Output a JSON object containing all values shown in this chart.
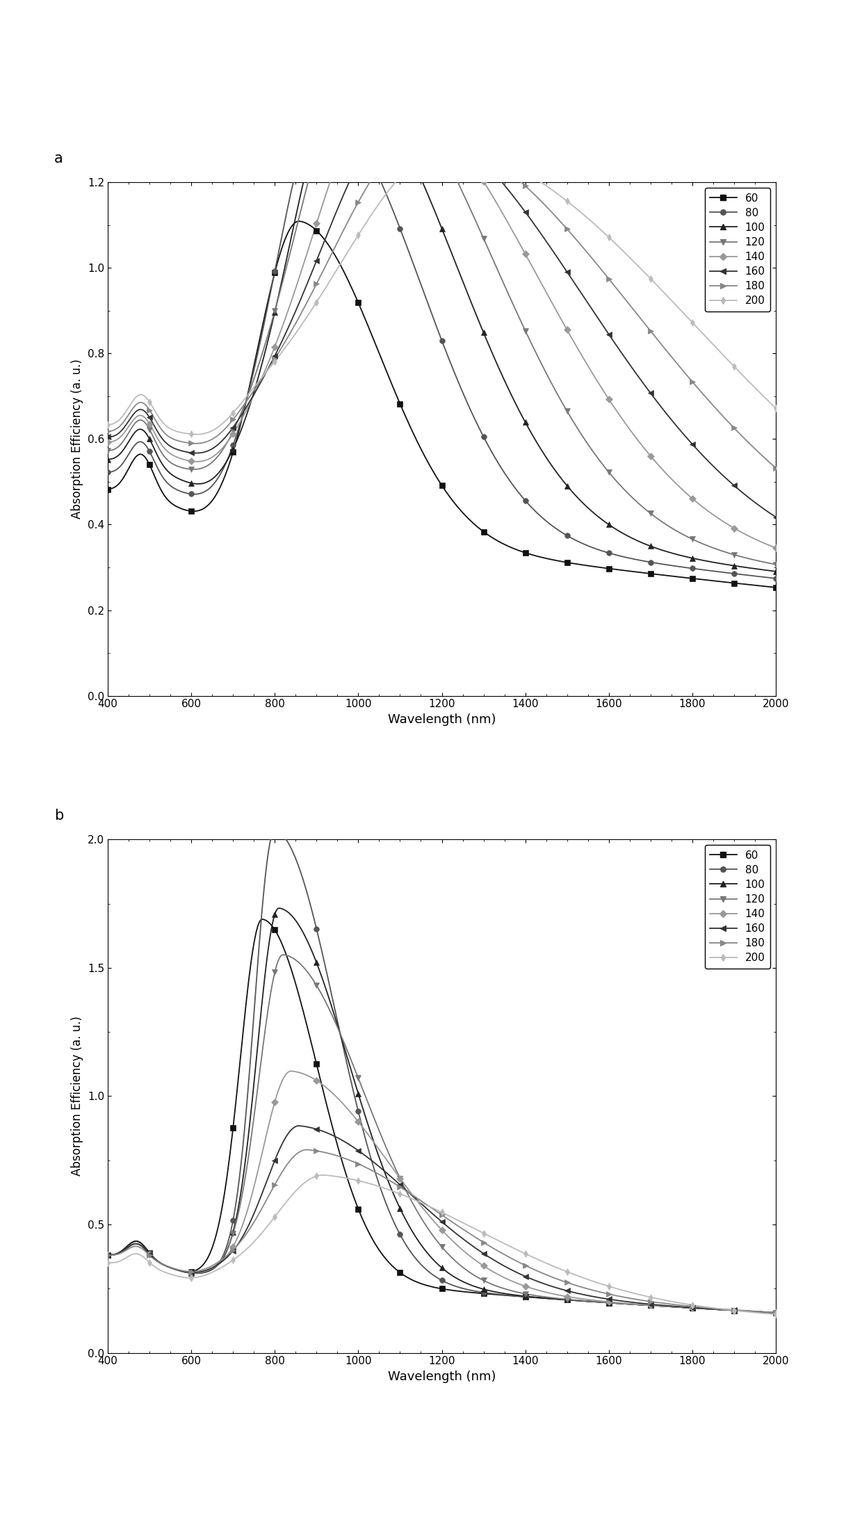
{
  "panel_a": {
    "title": "a",
    "xlabel": "Wavelength (nm)",
    "ylabel": "Absorption Efficiency (a. u.)",
    "xlim": [
      400,
      2000
    ],
    "ylim": [
      0.0,
      1.2
    ],
    "yticks": [
      0.0,
      0.2,
      0.4,
      0.6,
      0.8,
      1.0,
      1.2
    ],
    "xticks": [
      400,
      600,
      800,
      1000,
      1200,
      1400,
      1600,
      1800,
      2000
    ]
  },
  "panel_b": {
    "title": "b",
    "xlabel": "Wavelength (nm)",
    "ylabel": "Absorption Efficiency (a. u.)",
    "xlim": [
      400,
      2000
    ],
    "ylim": [
      0.0,
      2.0
    ],
    "yticks": [
      0,
      0.5,
      1.0,
      1.5,
      2.0
    ],
    "xticks": [
      400,
      600,
      800,
      1000,
      1200,
      1400,
      1600,
      1800,
      2000
    ]
  },
  "legend_labels": [
    "60",
    "80",
    "100",
    "120",
    "140",
    "160",
    "180",
    "200"
  ],
  "series_a": {
    "60": {
      "peak_wl": 860,
      "peak_val": 0.71,
      "sigma_l": 95,
      "sigma_r": 190,
      "base": 0.48,
      "sub_amp": 0.1,
      "sub_wl": 480,
      "sub_sig": 30
    },
    "80": {
      "peak_wl": 920,
      "peak_val": 0.95,
      "sigma_l": 115,
      "sigma_r": 230,
      "base": 0.52,
      "sub_amp": 0.09,
      "sub_wl": 480,
      "sub_sig": 30
    },
    "100": {
      "peak_wl": 970,
      "peak_val": 1.01,
      "sigma_l": 130,
      "sigma_r": 265,
      "base": 0.55,
      "sub_amp": 0.09,
      "sub_wl": 480,
      "sub_sig": 30
    },
    "120": {
      "peak_wl": 1010,
      "peak_val": 1.04,
      "sigma_l": 155,
      "sigma_r": 310,
      "base": 0.57,
      "sub_amp": 0.09,
      "sub_wl": 480,
      "sub_sig": 30
    },
    "140": {
      "peak_wl": 1070,
      "peak_val": 0.97,
      "sigma_l": 180,
      "sigma_r": 360,
      "base": 0.59,
      "sub_amp": 0.08,
      "sub_wl": 480,
      "sub_sig": 30
    },
    "160": {
      "peak_wl": 1120,
      "peak_val": 0.91,
      "sigma_l": 210,
      "sigma_r": 420,
      "base": 0.6,
      "sub_amp": 0.08,
      "sub_wl": 480,
      "sub_sig": 30
    },
    "180": {
      "peak_wl": 1175,
      "peak_val": 0.87,
      "sigma_l": 245,
      "sigma_r": 490,
      "base": 0.61,
      "sub_amp": 0.08,
      "sub_wl": 480,
      "sub_sig": 30
    },
    "200": {
      "peak_wl": 1240,
      "peak_val": 0.84,
      "sigma_l": 285,
      "sigma_r": 570,
      "base": 0.62,
      "sub_amp": 0.08,
      "sub_wl": 480,
      "sub_sig": 30
    }
  },
  "series_b": {
    "60": {
      "peak_wl": 770,
      "peak_val": 1.38,
      "sigma_l": 52,
      "sigma_r": 130,
      "base": 0.38,
      "sub_amp": 0.07,
      "sub_wl": 470,
      "sub_sig": 25
    },
    "80": {
      "peak_wl": 800,
      "peak_val": 1.73,
      "sigma_l": 48,
      "sigma_r": 145,
      "base": 0.38,
      "sub_amp": 0.07,
      "sub_wl": 470,
      "sub_sig": 25
    },
    "100": {
      "peak_wl": 810,
      "peak_val": 1.43,
      "sigma_l": 52,
      "sigma_r": 165,
      "base": 0.38,
      "sub_amp": 0.07,
      "sub_wl": 470,
      "sub_sig": 25
    },
    "120": {
      "peak_wl": 820,
      "peak_val": 1.25,
      "sigma_l": 58,
      "sigma_r": 190,
      "base": 0.38,
      "sub_amp": 0.06,
      "sub_wl": 470,
      "sub_sig": 25
    },
    "140": {
      "peak_wl": 840,
      "peak_val": 0.8,
      "sigma_l": 68,
      "sigma_r": 230,
      "base": 0.38,
      "sub_amp": 0.06,
      "sub_wl": 470,
      "sub_sig": 25
    },
    "160": {
      "peak_wl": 860,
      "peak_val": 0.59,
      "sigma_l": 80,
      "sigma_r": 270,
      "base": 0.38,
      "sub_amp": 0.06,
      "sub_wl": 470,
      "sub_sig": 25
    },
    "180": {
      "peak_wl": 880,
      "peak_val": 0.5,
      "sigma_l": 95,
      "sigma_r": 310,
      "base": 0.38,
      "sub_amp": 0.05,
      "sub_wl": 470,
      "sub_sig": 25
    },
    "200": {
      "peak_wl": 920,
      "peak_val": 0.43,
      "sigma_l": 115,
      "sigma_r": 370,
      "base": 0.35,
      "sub_amp": 0.05,
      "sub_wl": 470,
      "sub_sig": 25
    }
  },
  "markers": {
    "60": "s",
    "80": "o",
    "100": "^",
    "120": "v",
    "140": "D",
    "160": "<",
    "180": ">",
    "200": "d"
  },
  "marker_colors": {
    "60": "#111111",
    "80": "#555555",
    "100": "#222222",
    "120": "#777777",
    "140": "#999999",
    "160": "#333333",
    "180": "#888888",
    "200": "#bbbbbb"
  }
}
